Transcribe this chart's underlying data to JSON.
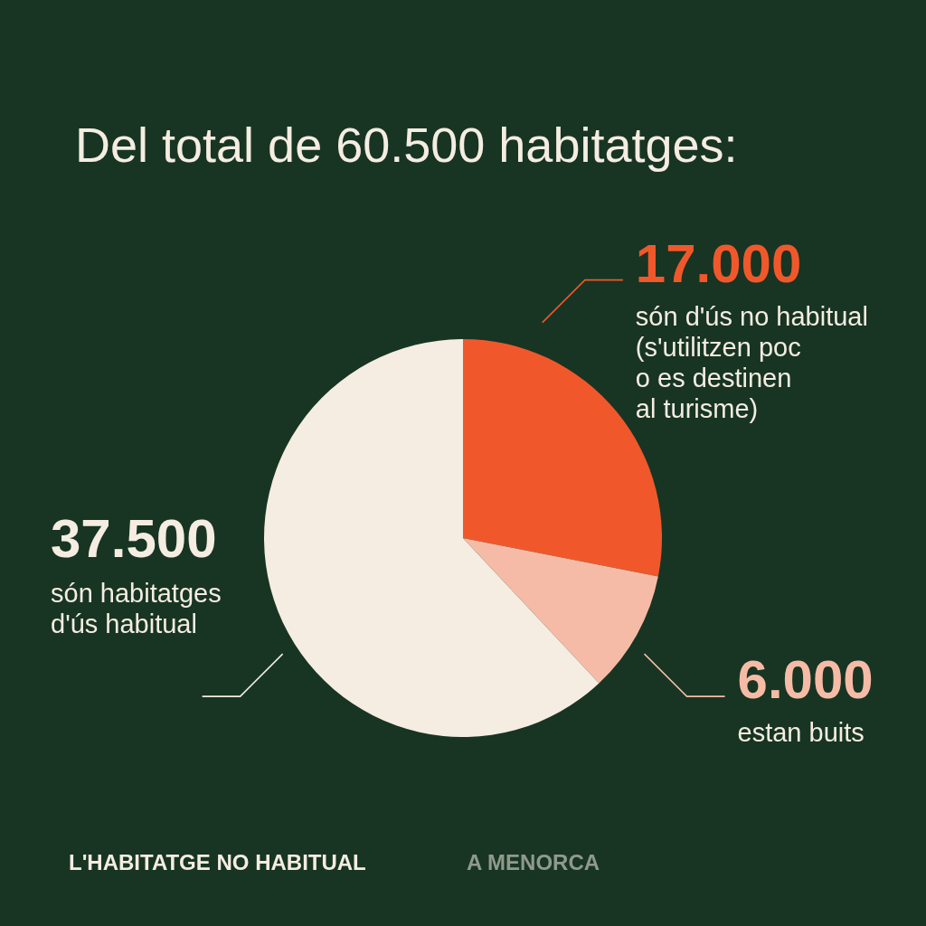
{
  "chart_data": {
    "type": "pie",
    "title": "Del total de 60.500 habitatges:",
    "categories": [
      "són d'ús no habitual\n(s'utilitzen poc\no es destinen\nal turisme)",
      "estan buits",
      "són habitatges\nd'ús habitual"
    ],
    "values": [
      17000,
      6000,
      37500
    ],
    "value_labels": [
      "17.000",
      "6.000",
      "37.500"
    ],
    "colors": [
      "#f0582b",
      "#f6bba6",
      "#f5ece2"
    ],
    "annotations": [
      "L'HABITATGE NO HABITUAL",
      "A MENORCA"
    ]
  }
}
